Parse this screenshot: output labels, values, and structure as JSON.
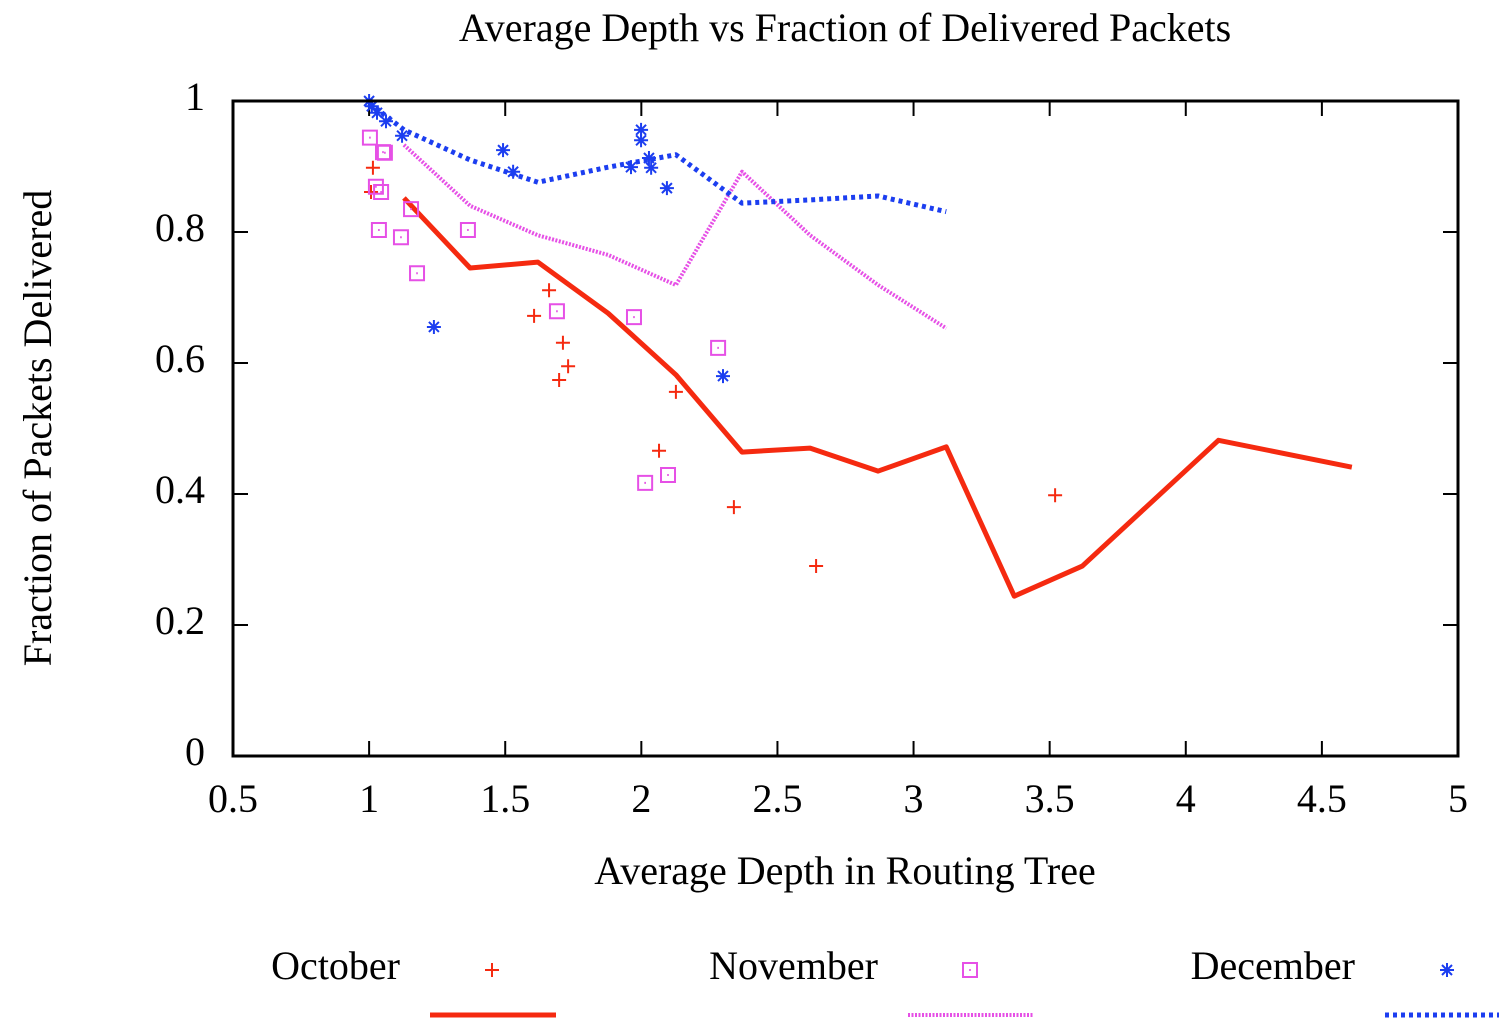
{
  "chart_data": {
    "type": "scatter_line",
    "title": "Average Depth vs Fraction of Delivered Packets",
    "xlabel": "Average Depth in Routing Tree",
    "ylabel": "Fraction of Packets Delivered",
    "xlim": [
      0.5,
      5
    ],
    "xticks": [
      0.5,
      1,
      1.5,
      2,
      2.5,
      3,
      3.5,
      4,
      4.5,
      5
    ],
    "ylim": [
      0,
      1
    ],
    "yticks": [
      0,
      0.2,
      0.4,
      0.6,
      0.8,
      1
    ],
    "legend": "bottom",
    "series": [
      {
        "name": "October",
        "color": "#f52a10",
        "marker": "plus",
        "line_dash": "solid",
        "points": {
          "x": [
            1.014,
            1.007,
            1.661,
            1.606,
            1.712,
            1.731,
            1.698,
            2.127,
            2.065,
            2.34,
            2.642,
            3.52
          ],
          "y": [
            0.898,
            0.861,
            0.711,
            0.672,
            0.631,
            0.595,
            0.574,
            0.556,
            0.466,
            0.38,
            0.29,
            0.398
          ]
        },
        "line": {
          "x": [
            1.128,
            1.371,
            1.62,
            1.878,
            2.127,
            2.37,
            2.62,
            2.87,
            3.12,
            3.37,
            3.62,
            4.12,
            4.61
          ],
          "y": [
            0.852,
            0.745,
            0.754,
            0.676,
            0.582,
            0.464,
            0.47,
            0.435,
            0.472,
            0.244,
            0.29,
            0.482,
            0.441
          ]
        }
      },
      {
        "name": "November",
        "color": "#e650e6",
        "marker": "square",
        "line_dash": "fine-dotted",
        "points": {
          "x": [
            1.003,
            1.051,
            1.058,
            1.025,
            1.044,
            1.036,
            1.117,
            1.154,
            1.176,
            1.363,
            1.69,
            1.973,
            2.282,
            2.014,
            2.098
          ],
          "y": [
            0.944,
            0.922,
            0.921,
            0.869,
            0.861,
            0.803,
            0.792,
            0.835,
            0.737,
            0.803,
            0.679,
            0.67,
            0.623,
            0.417,
            0.429
          ]
        },
        "line": {
          "x": [
            1.128,
            1.371,
            1.62,
            1.878,
            2.127,
            2.37,
            2.62,
            2.87,
            3.12
          ],
          "y": [
            0.933,
            0.84,
            0.795,
            0.765,
            0.719,
            0.892,
            0.795,
            0.719,
            0.653
          ]
        }
      },
      {
        "name": "December",
        "color": "#1c3ef0",
        "marker": "star",
        "line_dash": "dotted",
        "points": {
          "x": [
            1.0,
            1.01,
            1.029,
            1.062,
            1.121,
            1.238,
            1.492,
            1.529,
            1.962,
            1.999,
            1.999,
            2.028,
            2.036,
            2.094,
            2.3
          ],
          "y": [
            1.0,
            0.992,
            0.982,
            0.969,
            0.947,
            0.655,
            0.925,
            0.892,
            0.899,
            0.956,
            0.94,
            0.913,
            0.898,
            0.867,
            0.58
          ]
        },
        "line": {
          "x": [
            1.0,
            1.128,
            1.371,
            1.62,
            1.878,
            2.127,
            2.37,
            2.62,
            2.87,
            3.12
          ],
          "y": [
            0.997,
            0.956,
            0.91,
            0.876,
            0.899,
            0.918,
            0.844,
            0.849,
            0.855,
            0.831
          ]
        }
      }
    ]
  }
}
